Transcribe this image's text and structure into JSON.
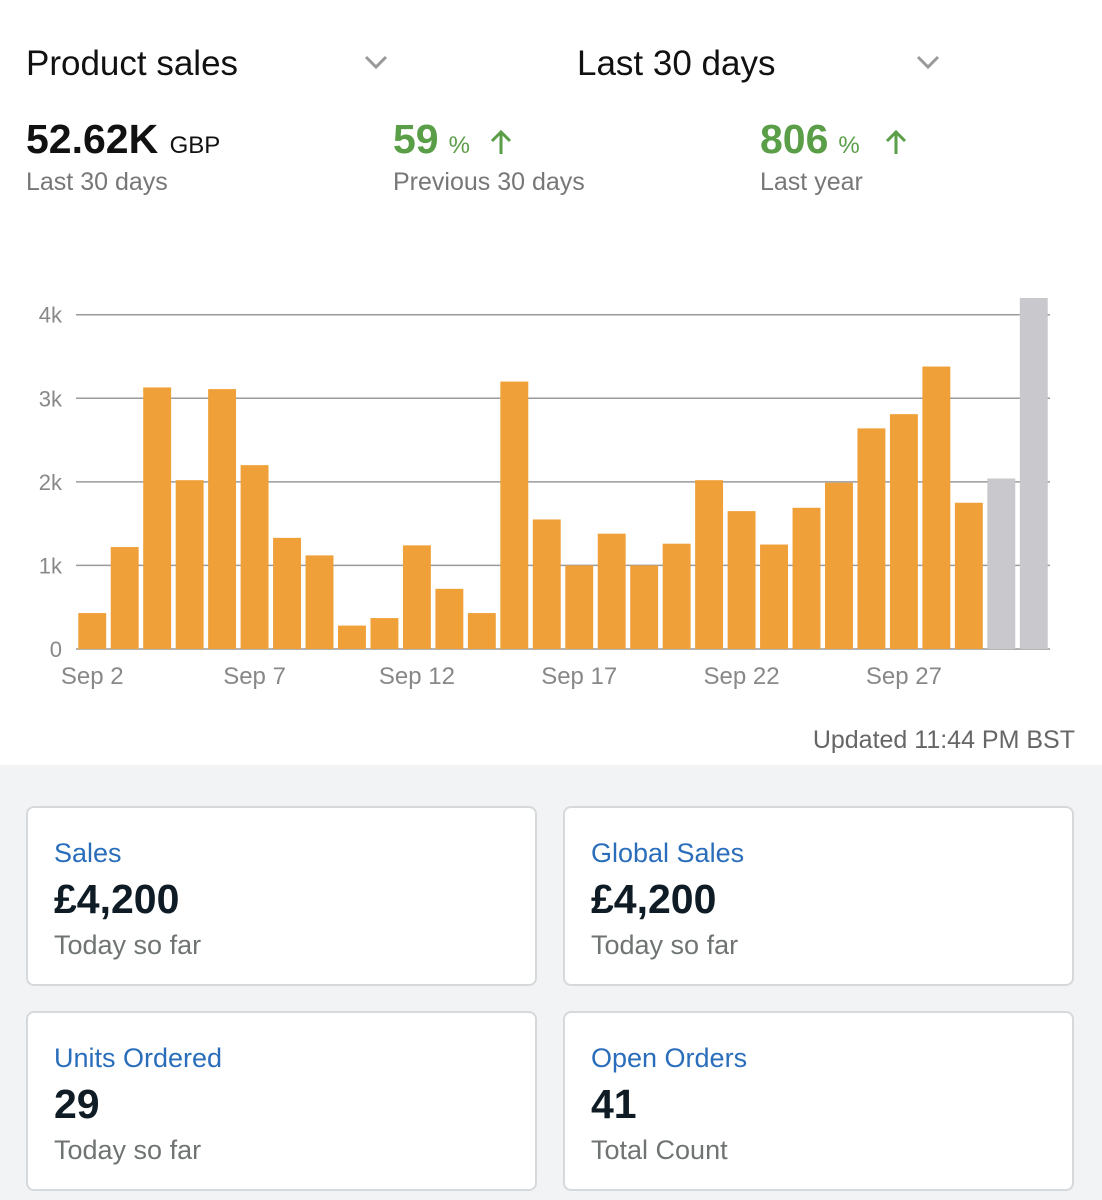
{
  "header": {
    "metric": "Product sales",
    "period": "Last 30 days"
  },
  "stats": [
    {
      "value": "52.62K",
      "unit": "GBP",
      "label": "Last 30 days"
    },
    {
      "value": 59,
      "unit": "%",
      "label": "Previous 30 days"
    },
    {
      "value": 806,
      "unit": "%",
      "label": "Last year"
    }
  ],
  "chart_data": {
    "type": "bar",
    "categories": [
      "Sep 2",
      null,
      null,
      null,
      null,
      "Sep 7",
      null,
      null,
      null,
      null,
      "Sep 12",
      null,
      null,
      null,
      null,
      "Sep 17",
      null,
      null,
      null,
      null,
      "Sep 22",
      null,
      null,
      null,
      null,
      "Sep 27",
      null,
      null,
      null,
      null
    ],
    "values": [
      430,
      1220,
      3130,
      2020,
      3110,
      2200,
      1330,
      1120,
      280,
      370,
      1240,
      720,
      430,
      3200,
      1550,
      1000,
      1380,
      1000,
      1260,
      2020,
      1650,
      1250,
      1690,
      1990,
      2640,
      2810,
      3380,
      1750,
      2040,
      4200
    ],
    "colors": [
      "#f0a038",
      "#f0a038",
      "#f0a038",
      "#f0a038",
      "#f0a038",
      "#f0a038",
      "#f0a038",
      "#f0a038",
      "#f0a038",
      "#f0a038",
      "#f0a038",
      "#f0a038",
      "#f0a038",
      "#f0a038",
      "#f0a038",
      "#f0a038",
      "#f0a038",
      "#f0a038",
      "#f0a038",
      "#f0a038",
      "#f0a038",
      "#f0a038",
      "#f0a038",
      "#f0a038",
      "#f0a038",
      "#f0a038",
      "#f0a038",
      "#f0a038",
      "#c8c8cd",
      "#c8c8cd"
    ],
    "ylim": [
      0,
      4200
    ],
    "yticks": [
      0,
      {
        "value": 1000,
        "label": "1k"
      },
      {
        "value": 2000,
        "label": "2k"
      },
      {
        "value": 3000,
        "label": "3k"
      },
      {
        "value": 4000,
        "label": "4k"
      }
    ],
    "grid": true
  },
  "updated": "Updated 11:44 PM BST",
  "cards": [
    {
      "label": "Sales",
      "value": "£4,200",
      "note": "Today so far"
    },
    {
      "label": "Global Sales",
      "value": "£4,200",
      "note": "Today so far"
    },
    {
      "label": "Units Ordered",
      "value": 29,
      "note": "Today so far"
    },
    {
      "label": "Open Orders",
      "value": 41,
      "note": "Total Count"
    }
  ]
}
